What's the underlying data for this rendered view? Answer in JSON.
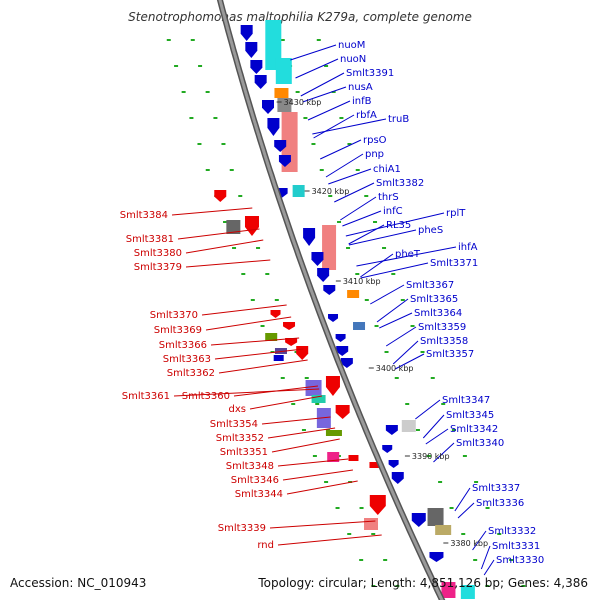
{
  "title": "Stenotrophomonas maltophilia K279a, complete genome",
  "footer": {
    "accession": "Accession: NC_010943",
    "topology": "Topology: circular; Length: 4,851,126 bp; Genes: 4,386"
  },
  "colors": {
    "right_label": "#0000cc",
    "left_label": "#cc0000",
    "backbone": "#808080",
    "dots": "#22aa22"
  },
  "ticks": [
    "3430 kbp",
    "3420 kbp",
    "3410 kbp",
    "3400 kbp",
    "3390 kbp",
    "3380 kbp"
  ],
  "right_labels": [
    "nuoM",
    "nuoN",
    "Smlt3391",
    "nusA",
    "infB",
    "rbfA",
    "truB",
    "rpsO",
    "pnp",
    "chiA1",
    "Smlt3382",
    "thrS",
    "infC",
    "RL35",
    "rplT",
    "pheS",
    "ihfA",
    "pheT",
    "Smlt3371",
    "Smlt3367",
    "Smlt3365",
    "Smlt3364",
    "Smlt3359",
    "Smlt3358",
    "Smlt3357",
    "Smlt3347",
    "Smlt3345",
    "Smlt3342",
    "Smlt3340",
    "Smlt3337",
    "Smlt3336",
    "Smlt3332",
    "Smlt3331",
    "Smlt3330"
  ],
  "left_labels": [
    "Smlt3384",
    "Smlt3381",
    "Smlt3380",
    "Smlt3379",
    "Smlt3370",
    "Smlt3369",
    "Smlt3366",
    "Smlt3363",
    "Smlt3362",
    "Smlt3361",
    "Smlt3360",
    "dxs",
    "Smlt3354",
    "Smlt3352",
    "Smlt3351",
    "Smlt3348",
    "Smlt3346",
    "Smlt3344",
    "Smlt3339",
    "rnd"
  ]
}
